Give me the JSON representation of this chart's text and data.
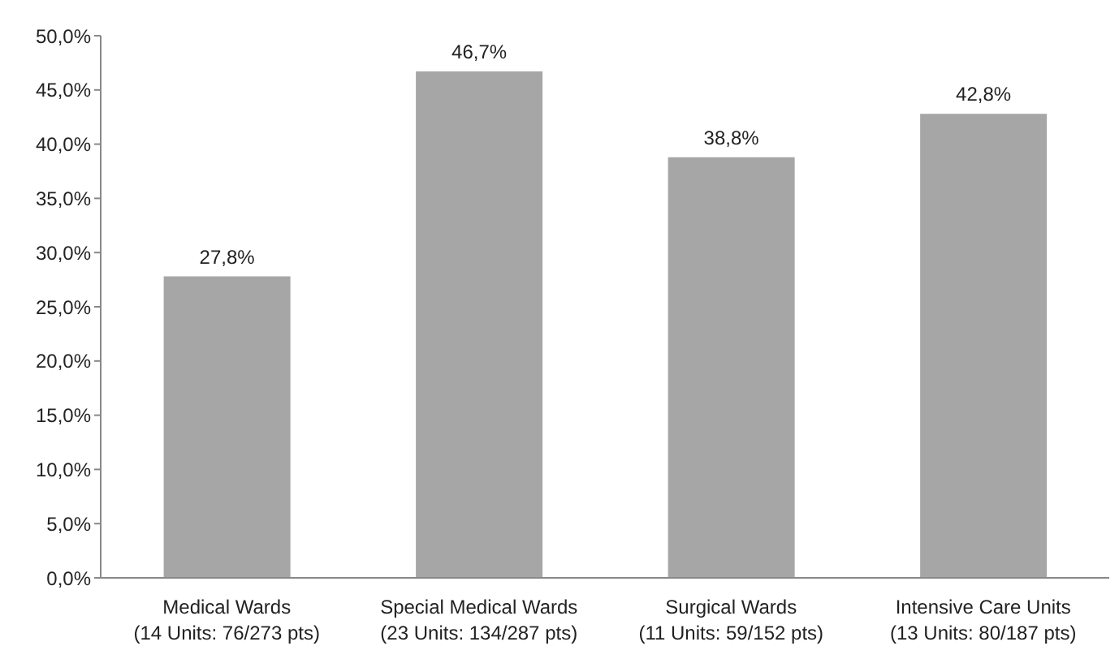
{
  "chart_data": {
    "type": "bar",
    "categories": [
      "Medical Wards\n(14 Units: 76/273 pts)",
      "Special Medical Wards\n(23 Units: 134/287 pts)",
      "Surgical Wards\n(11 Units: 59/152 pts)",
      "Intensive Care Units\n(13 Units: 80/187 pts)"
    ],
    "values": [
      27.8,
      46.7,
      38.8,
      42.8
    ],
    "value_labels": [
      "27,8%",
      "46,7%",
      "38,8%",
      "42,8%"
    ],
    "color": "#a6a6a6",
    "ylim": [
      0,
      50
    ],
    "yticks": [
      {
        "value": 0,
        "label": "0,0%"
      },
      {
        "value": 5,
        "label": "5,0%"
      },
      {
        "value": 10,
        "label": "10,0%"
      },
      {
        "value": 15,
        "label": "15,0%"
      },
      {
        "value": 20,
        "label": "20,0%"
      },
      {
        "value": 25,
        "label": "25,0%"
      },
      {
        "value": 30,
        "label": "30,0%"
      },
      {
        "value": 35,
        "label": "35,0%"
      },
      {
        "value": 40,
        "label": "40,0%"
      },
      {
        "value": 45,
        "label": "45,0%"
      },
      {
        "value": 50,
        "label": "50,0%"
      }
    ],
    "grid": false,
    "legend": false
  }
}
